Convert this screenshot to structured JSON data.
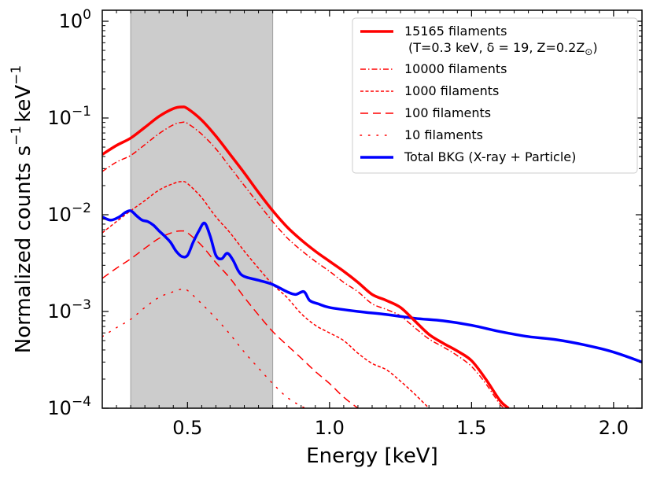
{
  "chart_data": {
    "type": "line",
    "xlabel": "Energy [keV]",
    "ylabel_text": "Normalized  counts s",
    "ylabel_exp1": "−1",
    "ylabel_unit": "keV",
    "ylabel_exp2": "−1",
    "xlim": [
      0.2,
      2.1
    ],
    "ylim": [
      0.0001,
      1.3
    ],
    "yscale": "log",
    "x_ticks": [
      {
        "value": 0.5,
        "label": "0.5"
      },
      {
        "value": 1.0,
        "label": "1.0"
      },
      {
        "value": 1.5,
        "label": "1.5"
      },
      {
        "value": 2.0,
        "label": "2.0"
      }
    ],
    "y_ticks": [
      {
        "value": 1,
        "base": "10",
        "exp": "0"
      },
      {
        "value": 0.1,
        "base": "10",
        "exp": "−1"
      },
      {
        "value": 0.01,
        "base": "10",
        "exp": "−2"
      },
      {
        "value": 0.001,
        "base": "10",
        "exp": "−3"
      },
      {
        "value": 0.0001,
        "base": "10",
        "exp": "−4"
      }
    ],
    "shaded_band": {
      "x_from": 0.3,
      "x_to": 0.8,
      "color": "#cccccc"
    },
    "legend_position": "upper right",
    "series": [
      {
        "name": "15165 filaments",
        "name_line2": "(T=0.3 keV, δ = 19, Z=0.2Z",
        "name_line2_symbol": "⊙",
        "name_line2_end": ")",
        "color": "#ff0000",
        "style": "solid",
        "width": 3.5,
        "x": [
          0.2,
          0.25,
          0.3,
          0.35,
          0.4,
          0.45,
          0.48,
          0.5,
          0.55,
          0.6,
          0.65,
          0.7,
          0.75,
          0.8,
          0.85,
          0.9,
          0.95,
          1.0,
          1.05,
          1.1,
          1.15,
          1.2,
          1.25,
          1.3,
          1.35,
          1.4,
          1.45,
          1.5,
          1.55,
          1.6,
          1.63
        ],
        "y": [
          0.042,
          0.052,
          0.062,
          0.08,
          0.104,
          0.125,
          0.13,
          0.125,
          0.095,
          0.065,
          0.042,
          0.027,
          0.017,
          0.011,
          0.0075,
          0.0055,
          0.0042,
          0.0033,
          0.0026,
          0.002,
          0.0015,
          0.0013,
          0.0011,
          0.0008,
          0.00058,
          0.00047,
          0.00039,
          0.00031,
          0.0002,
          0.00012,
          0.0001
        ]
      },
      {
        "name": "10000 filaments",
        "color": "#ff0000",
        "style": "dashdot",
        "width": 1.5,
        "x": [
          0.2,
          0.25,
          0.3,
          0.35,
          0.4,
          0.45,
          0.48,
          0.5,
          0.55,
          0.6,
          0.65,
          0.7,
          0.75,
          0.8,
          0.85,
          0.9,
          0.95,
          1.0,
          1.05,
          1.1,
          1.15,
          1.2,
          1.25,
          1.3,
          1.35,
          1.4,
          1.45,
          1.5,
          1.55,
          1.6,
          1.62
        ],
        "y": [
          0.028,
          0.035,
          0.041,
          0.053,
          0.069,
          0.085,
          0.09,
          0.088,
          0.068,
          0.048,
          0.031,
          0.02,
          0.013,
          0.0085,
          0.0058,
          0.0043,
          0.0033,
          0.0026,
          0.002,
          0.0016,
          0.0012,
          0.00105,
          0.0009,
          0.00068,
          0.00052,
          0.00043,
          0.00035,
          0.00027,
          0.00018,
          0.00011,
          0.0001
        ]
      },
      {
        "name": "1000 filaments",
        "color": "#ff0000",
        "style": "dashed",
        "width": 1.5,
        "x": [
          0.2,
          0.25,
          0.3,
          0.35,
          0.4,
          0.45,
          0.48,
          0.5,
          0.55,
          0.6,
          0.65,
          0.7,
          0.75,
          0.8,
          0.85,
          0.9,
          0.95,
          1.0,
          1.05,
          1.1,
          1.15,
          1.2,
          1.25,
          1.3,
          1.35
        ],
        "y": [
          0.0065,
          0.0085,
          0.011,
          0.014,
          0.018,
          0.021,
          0.022,
          0.021,
          0.015,
          0.0095,
          0.0065,
          0.0042,
          0.0028,
          0.0019,
          0.0014,
          0.00095,
          0.00072,
          0.0006,
          0.0005,
          0.00037,
          0.00029,
          0.00025,
          0.00019,
          0.00014,
          0.0001
        ]
      },
      {
        "name": "100 filaments",
        "color": "#ff0000",
        "style": "longdash",
        "width": 1.5,
        "x": [
          0.2,
          0.25,
          0.3,
          0.35,
          0.4,
          0.45,
          0.48,
          0.5,
          0.55,
          0.6,
          0.65,
          0.7,
          0.75,
          0.8,
          0.85,
          0.9,
          0.95,
          1.0,
          1.05,
          1.1
        ],
        "y": [
          0.0022,
          0.0028,
          0.0035,
          0.0045,
          0.0057,
          0.0066,
          0.0068,
          0.0065,
          0.0048,
          0.0032,
          0.0022,
          0.0014,
          0.00092,
          0.00062,
          0.00045,
          0.00033,
          0.00024,
          0.00018,
          0.00013,
          0.0001
        ]
      },
      {
        "name": "10 filaments",
        "color": "#ff0000",
        "style": "dotted",
        "width": 1.5,
        "x": [
          0.2,
          0.25,
          0.3,
          0.35,
          0.4,
          0.45,
          0.48,
          0.5,
          0.55,
          0.6,
          0.65,
          0.7,
          0.75,
          0.8,
          0.85,
          0.9,
          0.92
        ],
        "y": [
          0.00055,
          0.00068,
          0.00083,
          0.0011,
          0.0014,
          0.0016,
          0.0017,
          0.00165,
          0.0012,
          0.00085,
          0.00058,
          0.00038,
          0.00026,
          0.00018,
          0.00013,
          0.000105,
          0.0001
        ]
      },
      {
        "name": "Total BKG (X-ray + Particle)",
        "color": "#0000ff",
        "style": "solid",
        "width": 3.5,
        "x": [
          0.2,
          0.23,
          0.26,
          0.28,
          0.3,
          0.32,
          0.34,
          0.36,
          0.38,
          0.4,
          0.42,
          0.44,
          0.46,
          0.48,
          0.5,
          0.52,
          0.54,
          0.56,
          0.58,
          0.6,
          0.62,
          0.64,
          0.66,
          0.68,
          0.7,
          0.75,
          0.8,
          0.85,
          0.88,
          0.91,
          0.93,
          0.96,
          1.0,
          1.1,
          1.2,
          1.3,
          1.4,
          1.5,
          1.6,
          1.7,
          1.8,
          1.9,
          2.0,
          2.1
        ],
        "y": [
          0.0095,
          0.0088,
          0.0095,
          0.0105,
          0.011,
          0.0098,
          0.0088,
          0.0085,
          0.0078,
          0.0068,
          0.006,
          0.0052,
          0.0042,
          0.0037,
          0.0038,
          0.0052,
          0.0068,
          0.0082,
          0.006,
          0.0038,
          0.0035,
          0.004,
          0.0034,
          0.0026,
          0.0023,
          0.0021,
          0.0019,
          0.0016,
          0.0015,
          0.0016,
          0.0013,
          0.0012,
          0.0011,
          0.001,
          0.00093,
          0.00085,
          0.0008,
          0.00072,
          0.00062,
          0.00055,
          0.00051,
          0.00045,
          0.00038,
          0.0003
        ]
      }
    ]
  }
}
